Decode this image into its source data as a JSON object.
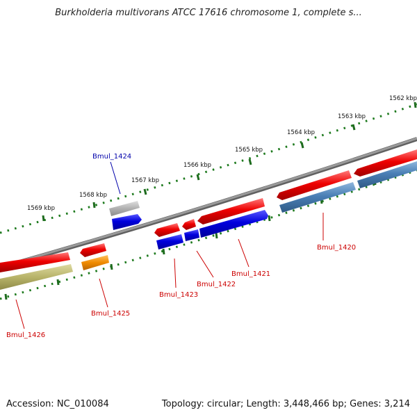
{
  "title": "Burkholderia multivorans ATCC 17616 chromosome 1, complete s...",
  "footer": {
    "accession": "Accession: NC_010084",
    "summary": "Topology: circular; Length: 3,448,466 bp; Genes: 3,214"
  },
  "scale": {
    "unit": "kbp",
    "labels": [
      "1562 kbp",
      "1563 kbp",
      "1564 kbp",
      "1565 kbp",
      "1566 kbp",
      "1567 kbp",
      "1568 kbp",
      "1569 kbp"
    ]
  },
  "genes": [
    {
      "label": "Bmul_1420",
      "color": "#cc0000"
    },
    {
      "label": "Bmul_1421",
      "color": "#cc0000"
    },
    {
      "label": "Bmul_1422",
      "color": "#cc0000"
    },
    {
      "label": "Bmul_1423",
      "color": "#cc0000"
    },
    {
      "label": "Bmul_1424",
      "color": "#0000aa"
    },
    {
      "label": "Bmul_1425",
      "color": "#cc0000"
    },
    {
      "label": "Bmul_1426",
      "color": "#cc0000"
    }
  ],
  "colors": {
    "backbone": "#888888",
    "tick_minor": "#1e7a1e",
    "tick_major": "#1e6b1e",
    "gene_red": "#ee0000",
    "gene_blue": "#0000dd",
    "gene_steel": "#4a7fb5",
    "gene_gray": "#b0b0b0",
    "gene_orange": "#f08a00",
    "gene_olive": "#b8b46a"
  }
}
